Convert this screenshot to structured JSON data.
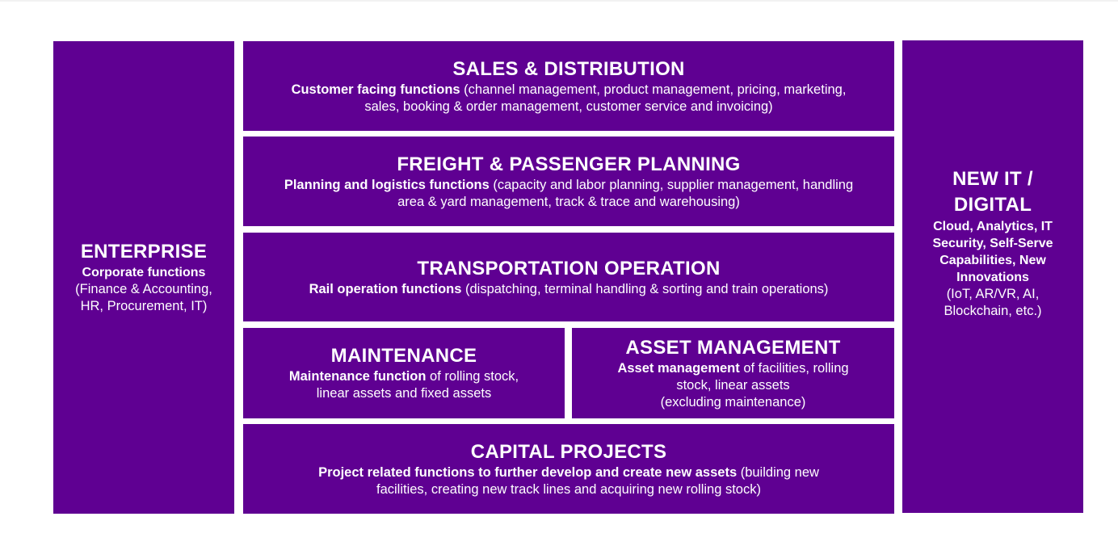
{
  "enterprise": {
    "title": "ENTERPRISE",
    "subtitle": "Corporate functions",
    "desc_line1": "(Finance & Accounting,",
    "desc_line2": "HR, Procurement, IT)"
  },
  "sales": {
    "title": "SALES & DISTRIBUTION",
    "bold": "Customer facing functions",
    "line1_rest": " (channel management, product management, pricing, marketing,",
    "line2": "sales, booking & order management, customer service and invoicing)"
  },
  "freight": {
    "title": "FREIGHT & PASSENGER PLANNING",
    "bold": "Planning and logistics functions",
    "line1_rest": " (capacity and labor planning, supplier management, handling",
    "line2": "area & yard management, track & trace and warehousing)"
  },
  "transport": {
    "title": "TRANSPORTATION OPERATION",
    "bold": "Rail operation functions",
    "line1_rest": " (dispatching, terminal handling & sorting and train operations)"
  },
  "maintenance": {
    "title": "MAINTENANCE",
    "bold": "Maintenance function",
    "line1_rest": " of rolling stock,",
    "line2": "linear assets and fixed assets"
  },
  "asset": {
    "title": "ASSET MANAGEMENT",
    "bold": "Asset management",
    "line1_rest": " of facilities, rolling",
    "line2": "stock, linear assets",
    "line3": "(excluding maintenance)"
  },
  "capital": {
    "title": "CAPITAL PROJECTS",
    "bold": "Project related functions to further develop and create new assets",
    "line1_rest": " (building new",
    "line2": "facilities, creating new track lines and acquiring new rolling stock)"
  },
  "newit": {
    "title_line1": "NEW IT /",
    "title_line2": "DIGITAL",
    "bold_line1": "Cloud, Analytics, IT",
    "bold_line2": "Security, Self-Serve",
    "bold_line3": "Capabilities, New",
    "bold_line4": "Innovations",
    "desc_line1": "(IoT, AR/VR, AI,",
    "desc_line2": "Blockchain, etc.)"
  },
  "colors": {
    "box": "#5f0092",
    "text": "#ffffff",
    "background": "#ffffff"
  }
}
